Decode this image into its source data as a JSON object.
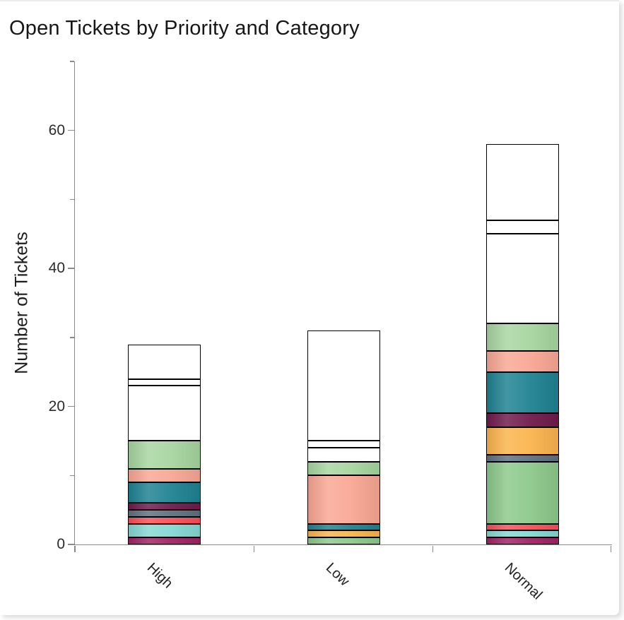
{
  "chart_data": {
    "type": "bar",
    "stacked": true,
    "title": "Open Tickets by Priority and Category",
    "ylabel": "Number of Tickets",
    "xlabel": "",
    "categories": [
      "High",
      "Low",
      "Normal"
    ],
    "totals": [
      29,
      31,
      58
    ],
    "ylim": [
      0,
      70
    ],
    "y_major_ticks": [
      0,
      20,
      40,
      60
    ],
    "y_minor_ticks": [
      10,
      30,
      50,
      70
    ],
    "grid": false,
    "legend": "none",
    "segment_outline_color": "#000000",
    "palette": {
      "white": "#ffffff",
      "light_green": "#a7d6a0",
      "medium_green": "#8dc98b",
      "salmon": "#f9a794",
      "teal": "#1f8292",
      "maroon": "#6f1b4c",
      "orange": "#fbb44e",
      "slate": "#5f7280",
      "red": "#fb4f59",
      "cyan": "#85d8d3",
      "magenta": "#a12366"
    },
    "stacks": [
      {
        "category": "High",
        "segments": [
          {
            "color": "magenta",
            "value": 1
          },
          {
            "color": "cyan",
            "value": 2
          },
          {
            "color": "red",
            "value": 1
          },
          {
            "color": "slate",
            "value": 1
          },
          {
            "color": "maroon",
            "value": 1
          },
          {
            "color": "teal",
            "value": 3
          },
          {
            "color": "salmon",
            "value": 2
          },
          {
            "color": "light_green",
            "value": 4
          },
          {
            "color": "white",
            "value": 8
          },
          {
            "color": "white",
            "value": 1
          },
          {
            "color": "white",
            "value": 5
          }
        ]
      },
      {
        "category": "Low",
        "segments": [
          {
            "color": "medium_green",
            "value": 1
          },
          {
            "color": "orange",
            "value": 1
          },
          {
            "color": "teal",
            "value": 1
          },
          {
            "color": "salmon",
            "value": 7
          },
          {
            "color": "light_green",
            "value": 2
          },
          {
            "color": "white",
            "value": 2
          },
          {
            "color": "white",
            "value": 1
          },
          {
            "color": "white",
            "value": 16
          }
        ]
      },
      {
        "category": "Normal",
        "segments": [
          {
            "color": "magenta",
            "value": 1
          },
          {
            "color": "cyan",
            "value": 1
          },
          {
            "color": "red",
            "value": 1
          },
          {
            "color": "medium_green",
            "value": 9
          },
          {
            "color": "slate",
            "value": 1
          },
          {
            "color": "orange",
            "value": 4
          },
          {
            "color": "maroon",
            "value": 2
          },
          {
            "color": "teal",
            "value": 6
          },
          {
            "color": "salmon",
            "value": 3
          },
          {
            "color": "light_green",
            "value": 4
          },
          {
            "color": "white",
            "value": 13
          },
          {
            "color": "white",
            "value": 2
          },
          {
            "color": "white",
            "value": 11
          }
        ]
      }
    ]
  },
  "axis": {
    "line_color": "#8a8a8a",
    "tick_label_color": "#2b2b2b",
    "title_color": "#161616"
  }
}
